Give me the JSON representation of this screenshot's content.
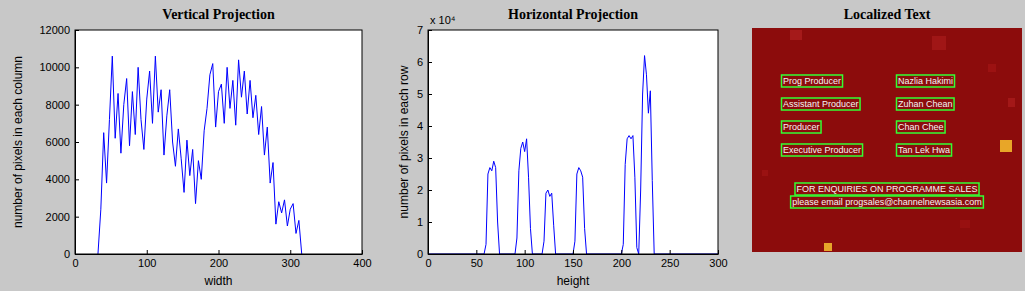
{
  "chart_data": [
    {
      "type": "line",
      "title": "Vertical Projection",
      "x_label": "width",
      "y_label": "number of pixels in each column",
      "color": "#0000ff",
      "xlim": [
        0,
        400
      ],
      "xticks": [
        0,
        100,
        200,
        300,
        400
      ],
      "ylim": [
        0,
        12000
      ],
      "yticks": [
        0,
        2000,
        4000,
        6000,
        8000,
        10000,
        12000
      ],
      "x": [
        32,
        36,
        40,
        44,
        48,
        52,
        56,
        60,
        64,
        68,
        72,
        76,
        80,
        84,
        88,
        92,
        96,
        100,
        104,
        108,
        112,
        116,
        120,
        124,
        128,
        132,
        136,
        140,
        144,
        148,
        152,
        156,
        160,
        164,
        168,
        172,
        176,
        180,
        184,
        188,
        192,
        196,
        200,
        204,
        208,
        212,
        216,
        220,
        224,
        228,
        232,
        236,
        240,
        244,
        248,
        252,
        256,
        260,
        264,
        268,
        272,
        276,
        280,
        284,
        288,
        292,
        296,
        300,
        304,
        308,
        312,
        316
      ],
      "values": [
        0,
        2400,
        6500,
        3800,
        7200,
        10600,
        6200,
        8600,
        5400,
        8000,
        9400,
        5800,
        8700,
        6400,
        10000,
        7200,
        5600,
        8300,
        9800,
        7000,
        10600,
        7600,
        8800,
        5300,
        7400,
        8800,
        6000,
        4700,
        6700,
        5100,
        3300,
        6100,
        4200,
        5600,
        2700,
        5000,
        4000,
        6600,
        7800,
        9600,
        10200,
        6800,
        8700,
        9100,
        7000,
        10000,
        7800,
        9300,
        6900,
        10400,
        8400,
        9800,
        7500,
        9300,
        7300,
        8500,
        6400,
        7900,
        5300,
        6800,
        3800,
        4900,
        1600,
        2800,
        2200,
        2900,
        1500,
        2400,
        2700,
        1100,
        1800,
        0
      ]
    },
    {
      "type": "line",
      "title": "Horizontal Projection",
      "x_label": "height",
      "y_label": "number of pixels in each row",
      "annotation": "x 10⁴",
      "color": "#0000ff",
      "xlim": [
        0,
        300
      ],
      "xticks": [
        0,
        50,
        100,
        150,
        200,
        250,
        300
      ],
      "ylim": [
        0,
        7
      ],
      "yticks": [
        0,
        1,
        2,
        3,
        4,
        5,
        6,
        7
      ],
      "x": [
        0,
        58,
        60,
        62,
        64,
        66,
        68,
        70,
        72,
        74,
        90,
        92,
        94,
        96,
        98,
        100,
        102,
        104,
        106,
        108,
        118,
        120,
        122,
        124,
        126,
        128,
        130,
        132,
        150,
        152,
        154,
        156,
        158,
        160,
        162,
        164,
        200,
        202,
        204,
        206,
        208,
        210,
        212,
        214,
        216,
        218,
        220,
        222,
        224,
        226,
        228,
        230,
        232,
        234,
        300
      ],
      "values": [
        0,
        0,
        0.3,
        2.5,
        2.7,
        2.6,
        2.9,
        2.7,
        1.0,
        0,
        0,
        0.5,
        2.6,
        3.3,
        3.5,
        3.2,
        3.6,
        2.4,
        0.8,
        0,
        0,
        0.4,
        1.9,
        2.0,
        1.8,
        1.9,
        0.9,
        0,
        0,
        0.4,
        2.5,
        2.7,
        2.6,
        2.4,
        0.8,
        0,
        0,
        0.3,
        2.8,
        3.6,
        3.7,
        3.6,
        3.7,
        2.4,
        0.2,
        0,
        2.0,
        5.0,
        6.2,
        5.6,
        4.4,
        5.1,
        2.3,
        0,
        0
      ]
    },
    {
      "type": "image",
      "title": "Localized Text",
      "credits": [
        [
          "Prog Producer",
          "Nazlia Hakimi"
        ],
        [
          "Assistant Producer",
          "Zuhan Chean"
        ],
        [
          "Producer",
          "Chan Chee"
        ],
        [
          "Executive Producer",
          "Tan Lek Hwa"
        ]
      ],
      "notice": [
        "FOR ENQUIRIES ON PROGRAMME SALES",
        "please email progsales@channelnewsasia.com"
      ]
    }
  ]
}
